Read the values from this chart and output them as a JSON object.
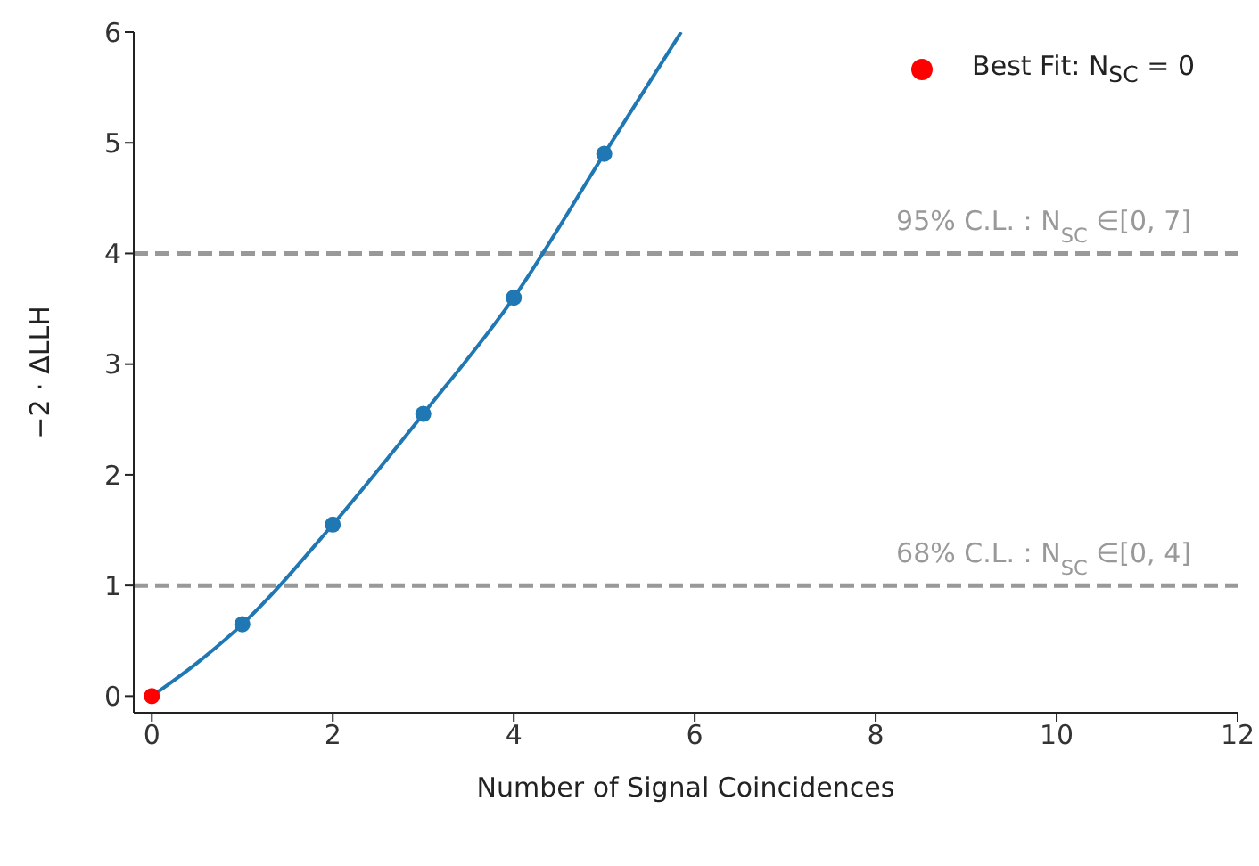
{
  "chart_data": {
    "type": "line",
    "xlabel": "Number of Signal Coincidences",
    "ylabel": "−2 · ΔLLH",
    "xlim": [
      -0.2,
      12
    ],
    "xticks": [
      0,
      2,
      4,
      6,
      8,
      10,
      12
    ],
    "ylim": [
      -0.15,
      6
    ],
    "yticks": [
      0,
      1,
      2,
      3,
      4,
      5,
      6
    ],
    "grid": false,
    "legend": "top right",
    "series": [
      {
        "type": "line",
        "color": "#1f77b4",
        "marker": "none",
        "line_style": "solid",
        "x": [
          0,
          0.5,
          1,
          2,
          3,
          4,
          5,
          5.85
        ],
        "values": [
          0,
          0.3,
          0.65,
          1.55,
          2.55,
          3.6,
          4.9,
          6
        ]
      },
      {
        "type": "scatter",
        "color": "#1f77b4",
        "marker": "circle",
        "x": [
          1,
          2,
          3,
          4,
          5
        ],
        "values": [
          0.65,
          1.55,
          2.55,
          3.6,
          4.9
        ]
      },
      {
        "type": "scatter",
        "name": "Best Fit: N$_{SC}$ = 0",
        "color": "#ff0000",
        "marker": "circle",
        "x": [
          0
        ],
        "values": [
          0
        ]
      }
    ],
    "ref_lines": [
      {
        "axis": "y",
        "value": 4,
        "label": "95% C.L. : N$_{SC}$ ∈[0, 7]",
        "color": "#999999",
        "line_style": "dashed"
      },
      {
        "axis": "y",
        "value": 1,
        "label": "68% C.L. : N$_{SC}$ ∈[0, 4]",
        "color": "#999999",
        "line_style": "dashed"
      }
    ]
  }
}
